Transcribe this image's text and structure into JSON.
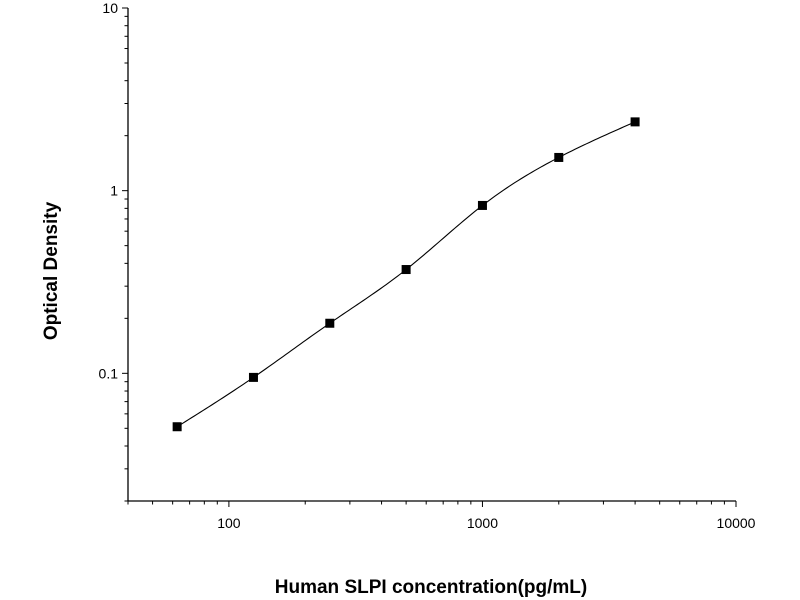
{
  "chart_data": {
    "type": "scatter",
    "title": "",
    "xlabel": "Human SLPI concentration(pg/mL)",
    "ylabel": "Optical Density",
    "xscale": "log",
    "yscale": "log",
    "xlim": [
      40,
      10000
    ],
    "ylim": [
      0.02,
      10
    ],
    "xticks": [
      {
        "value": 100,
        "label": "100"
      },
      {
        "value": 1000,
        "label": "1000"
      },
      {
        "value": 10000,
        "label": "10000"
      }
    ],
    "yticks": [
      {
        "value": 0.1,
        "label": "0.1"
      },
      {
        "value": 1,
        "label": "1"
      },
      {
        "value": 10,
        "label": "10"
      }
    ],
    "grid": false,
    "fit_curve": true,
    "series": [
      {
        "x": [
          62.5,
          125,
          250,
          500,
          1000,
          2000,
          4000
        ],
        "y": [
          0.051,
          0.095,
          0.188,
          0.37,
          0.83,
          1.52,
          2.38
        ]
      }
    ],
    "colors": {
      "marker": "#000000",
      "line": "#000000",
      "axis": "#000000"
    }
  }
}
